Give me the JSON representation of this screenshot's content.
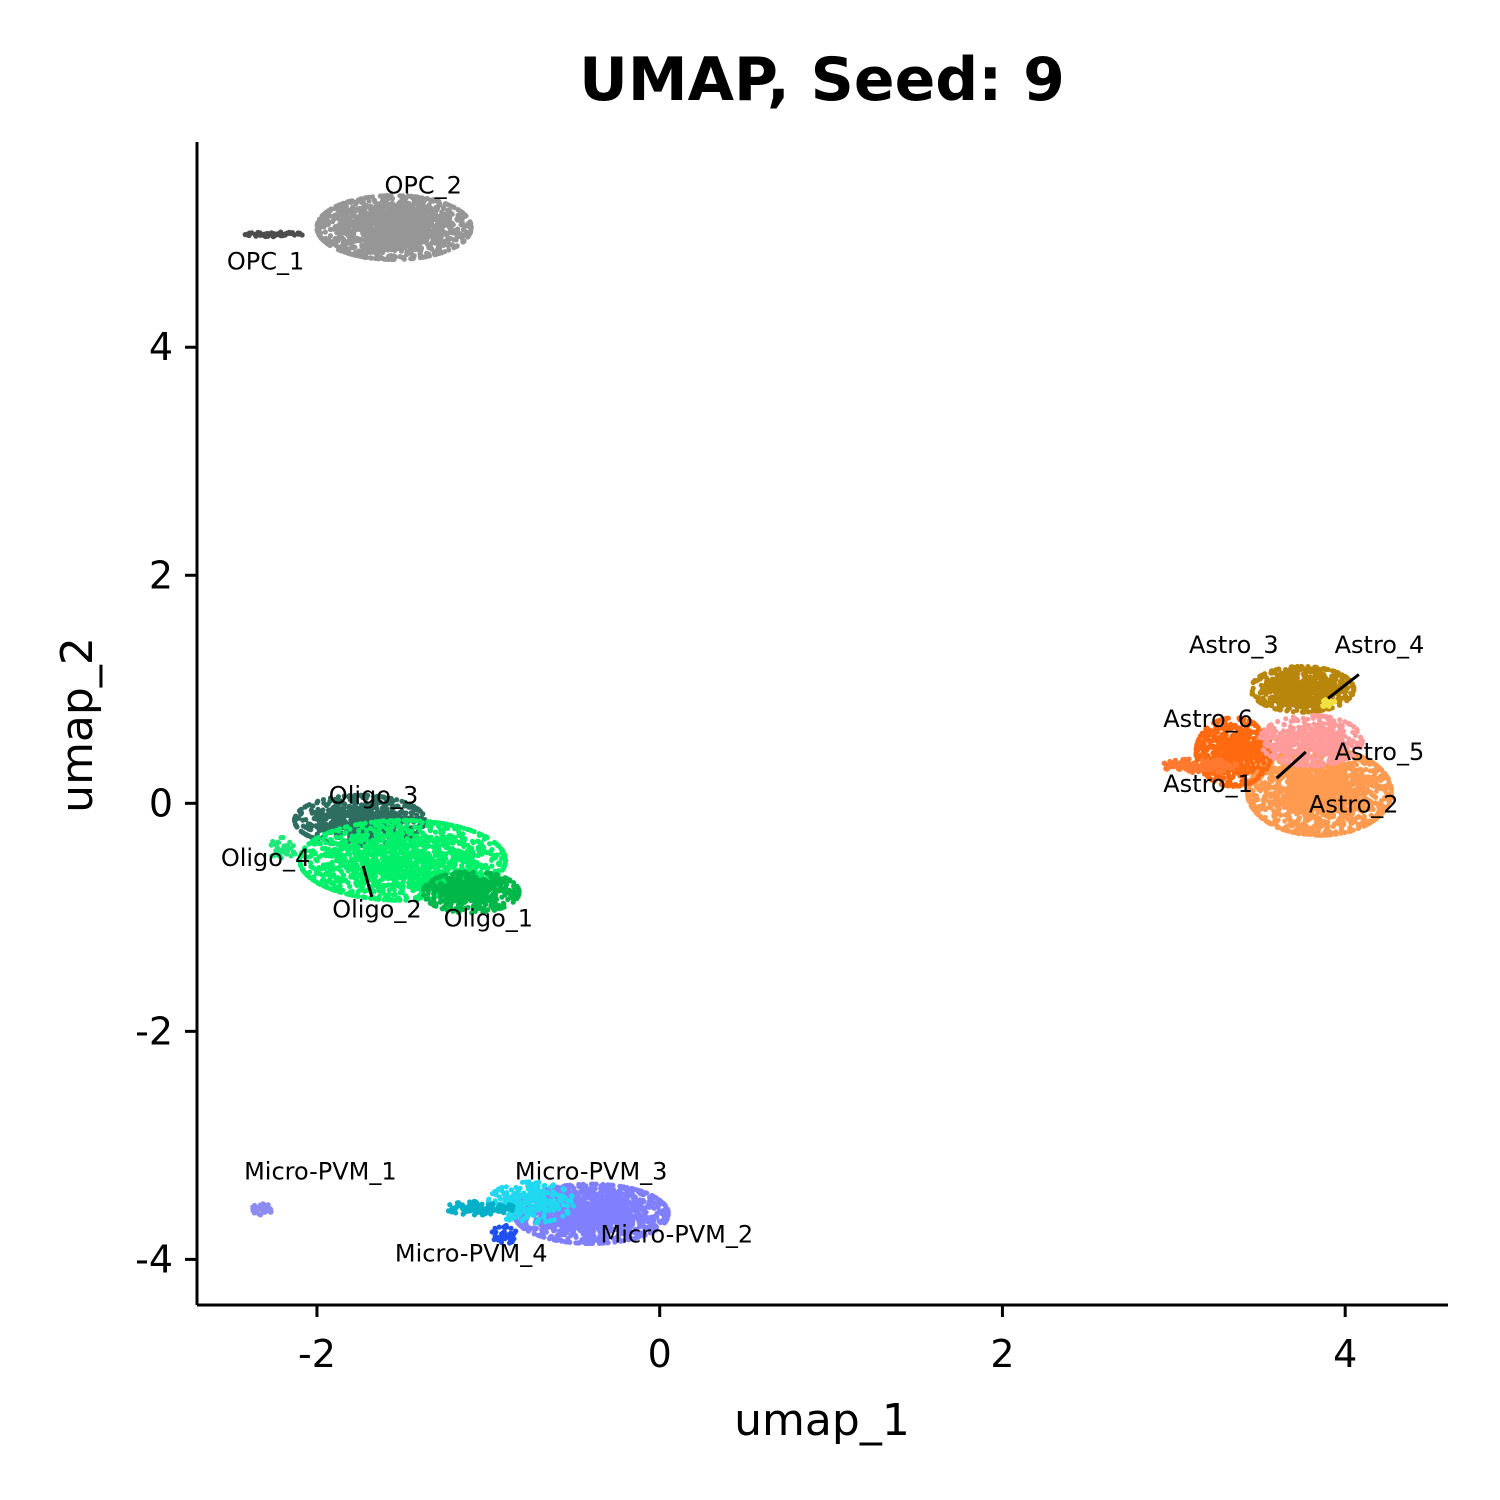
{
  "chart_data": {
    "type": "scatter",
    "title": "UMAP, Seed: 9",
    "xlabel": "umap_1",
    "ylabel": "umap_2",
    "xlim": [
      -2.7,
      4.6
    ],
    "ylim": [
      -4.4,
      5.8
    ],
    "xticks": [
      -2,
      0,
      2,
      4
    ],
    "yticks": [
      -4,
      -2,
      0,
      2,
      4
    ],
    "xtick_labels": [
      "-2",
      "0",
      "2",
      "4"
    ],
    "ytick_labels": [
      "-4",
      "-2",
      "0",
      "2",
      "4"
    ],
    "grid": false,
    "legend": "none",
    "clusters": [
      {
        "name": "OPC_2",
        "color": "#969696",
        "cx": -1.55,
        "cy": 5.05,
        "rx": 0.45,
        "ry": 0.28,
        "n": 1400,
        "label_x": -1.38,
        "label_y": 5.35
      },
      {
        "name": "OPC_1",
        "color": "#4d4d4d",
        "cx": -2.25,
        "cy": 4.99,
        "rx": 0.17,
        "ry": 0.02,
        "n": 60,
        "label_x": -2.3,
        "label_y": 4.68
      },
      {
        "name": "Oligo_3",
        "color": "#2e6e60",
        "cx": -1.75,
        "cy": -0.15,
        "rx": 0.38,
        "ry": 0.22,
        "n": 700,
        "label_x": -1.67,
        "label_y": 0.0
      },
      {
        "name": "Oligo_2",
        "color": "#00f06a",
        "cx": -1.5,
        "cy": -0.5,
        "rx": 0.6,
        "ry": 0.35,
        "n": 1500,
        "label_x": -1.65,
        "label_y": -1.0
      },
      {
        "name": "Oligo_1",
        "color": "#00b84a",
        "cx": -1.1,
        "cy": -0.78,
        "rx": 0.28,
        "ry": 0.18,
        "n": 500,
        "label_x": -1.0,
        "label_y": -1.08
      },
      {
        "name": "Oligo_4",
        "color": "#1ee87a",
        "cx": -2.2,
        "cy": -0.4,
        "rx": 0.08,
        "ry": 0.1,
        "n": 40,
        "label_x": -2.3,
        "label_y": -0.55
      },
      {
        "name": "Micro-PVM_2",
        "color": "#8080ff",
        "cx": -0.4,
        "cy": -3.6,
        "rx": 0.45,
        "ry": 0.26,
        "n": 1300,
        "label_x": 0.1,
        "label_y": -3.85
      },
      {
        "name": "Micro-PVM_3",
        "color": "#20d8f0",
        "cx": -0.75,
        "cy": -3.5,
        "rx": 0.25,
        "ry": 0.18,
        "n": 250,
        "label_x": -0.4,
        "label_y": -3.3
      },
      {
        "name": "Micro-PVM_4",
        "color": "#2050f0",
        "cx": -0.9,
        "cy": -3.78,
        "rx": 0.08,
        "ry": 0.08,
        "n": 40,
        "label_x": -1.1,
        "label_y": -4.02
      },
      {
        "name": "Micro-PVM_cyan",
        "color": "#00b0c8",
        "cx": -1.05,
        "cy": -3.55,
        "rx": 0.2,
        "ry": 0.06,
        "n": 120,
        "label_x": null,
        "label_y": null
      },
      {
        "name": "Micro-PVM_1",
        "color": "#8c8cf0",
        "cx": -2.32,
        "cy": -3.56,
        "rx": 0.06,
        "ry": 0.05,
        "n": 40,
        "label_x": -1.98,
        "label_y": -3.3
      },
      {
        "name": "Astro_3",
        "color": "#b8860b",
        "cx": 3.75,
        "cy": 1.0,
        "rx": 0.3,
        "ry": 0.2,
        "n": 700,
        "label_x": 3.35,
        "label_y": 1.32
      },
      {
        "name": "Astro_2",
        "color": "#ff9b50",
        "cx": 3.85,
        "cy": 0.1,
        "rx": 0.42,
        "ry": 0.38,
        "n": 1600,
        "label_x": 4.05,
        "label_y": -0.08
      },
      {
        "name": "Astro_6",
        "color": "#ff6a10",
        "cx": 3.35,
        "cy": 0.45,
        "rx": 0.22,
        "ry": 0.3,
        "n": 600,
        "label_x": 3.2,
        "label_y": 0.67
      },
      {
        "name": "Astro_5",
        "color": "#ff9b9b",
        "cx": 3.8,
        "cy": 0.55,
        "rx": 0.3,
        "ry": 0.22,
        "n": 500,
        "label_x": 4.2,
        "label_y": 0.38
      },
      {
        "name": "Astro_1",
        "color": "#ff7a30",
        "cx": 3.15,
        "cy": 0.33,
        "rx": 0.22,
        "ry": 0.06,
        "n": 150,
        "label_x": 3.2,
        "label_y": 0.1
      },
      {
        "name": "Astro_4",
        "color": "#f0e040",
        "cx": 3.9,
        "cy": 0.88,
        "rx": 0.04,
        "ry": 0.04,
        "n": 20,
        "label_x": 4.2,
        "label_y": 1.32
      }
    ],
    "leader_lines": [
      {
        "x1": -1.73,
        "y1": -0.55,
        "x2": -1.68,
        "y2": -0.82
      },
      {
        "x1": 3.9,
        "y1": 0.92,
        "x2": 4.08,
        "y2": 1.13
      },
      {
        "x1": 3.77,
        "y1": 0.45,
        "x2": 3.6,
        "y2": 0.22
      }
    ]
  }
}
